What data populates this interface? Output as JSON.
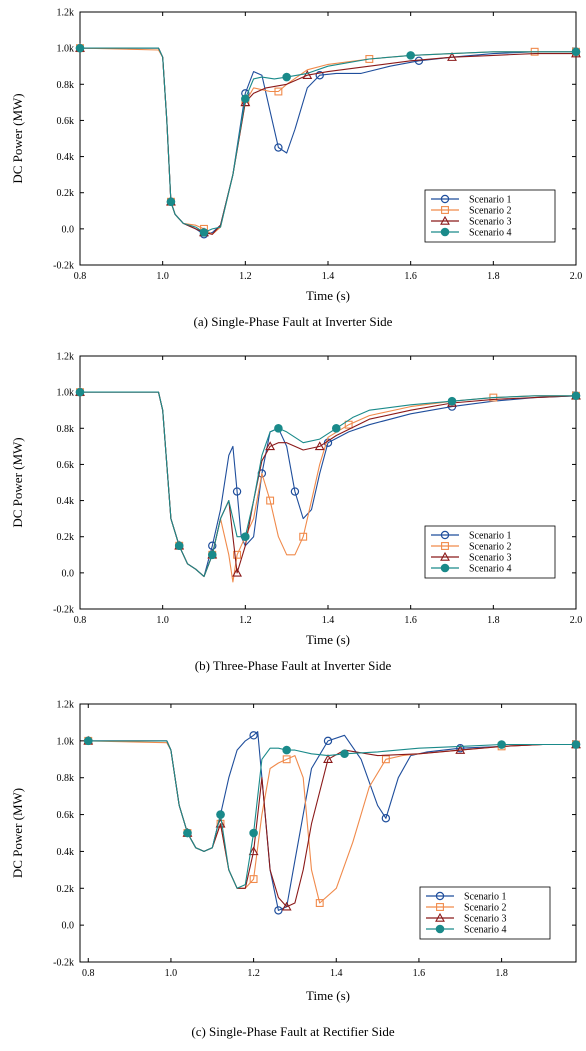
{
  "chart_data": [
    {
      "type": "line",
      "caption": "(a) Single-Phase Fault at Inverter Side",
      "xlabel": "Time (s)",
      "ylabel": "DC Power (MW)",
      "xlim": [
        0.8,
        2.0
      ],
      "ylim": [
        -0.2,
        1.2
      ],
      "x_ticks": [
        "0.8",
        "1.0",
        "1.2",
        "1.4",
        "1.6",
        "1.8",
        "2.0"
      ],
      "y_ticks": [
        "-0.2k",
        "0.0",
        "0.2k",
        "0.4k",
        "0.6k",
        "0.8k",
        "1.0k",
        "1.2k"
      ],
      "legend_position": "lower-right",
      "series": [
        {
          "name": "Scenario 1",
          "color": "#1f4e9c",
          "marker": "circle",
          "x": [
            0.8,
            0.99,
            1.0,
            1.01,
            1.02,
            1.03,
            1.05,
            1.08,
            1.1,
            1.12,
            1.14,
            1.17,
            1.2,
            1.22,
            1.24,
            1.26,
            1.28,
            1.3,
            1.32,
            1.35,
            1.38,
            1.42,
            1.48,
            1.55,
            1.62,
            1.7,
            1.8,
            1.9,
            2.0
          ],
          "y": [
            1.0,
            1.0,
            0.95,
            0.6,
            0.15,
            0.08,
            0.03,
            0.0,
            -0.03,
            -0.02,
            0.02,
            0.3,
            0.75,
            0.87,
            0.85,
            0.65,
            0.45,
            0.42,
            0.55,
            0.78,
            0.85,
            0.86,
            0.86,
            0.9,
            0.93,
            0.95,
            0.97,
            0.98,
            0.98
          ]
        },
        {
          "name": "Scenario 2",
          "color": "#f08a4b",
          "marker": "square",
          "x": [
            0.8,
            0.99,
            1.0,
            1.01,
            1.02,
            1.03,
            1.05,
            1.08,
            1.1,
            1.12,
            1.14,
            1.17,
            1.2,
            1.22,
            1.24,
            1.26,
            1.28,
            1.3,
            1.35,
            1.4,
            1.5,
            1.6,
            1.7,
            1.8,
            1.9,
            2.0
          ],
          "y": [
            1.0,
            0.99,
            0.95,
            0.6,
            0.15,
            0.08,
            0.03,
            0.02,
            0.0,
            -0.03,
            0.01,
            0.3,
            0.7,
            0.78,
            0.77,
            0.76,
            0.76,
            0.8,
            0.88,
            0.91,
            0.94,
            0.96,
            0.97,
            0.98,
            0.98,
            0.98
          ]
        },
        {
          "name": "Scenario 3",
          "color": "#8b1a1a",
          "marker": "triangle",
          "x": [
            0.8,
            0.99,
            1.0,
            1.01,
            1.02,
            1.03,
            1.05,
            1.08,
            1.1,
            1.12,
            1.14,
            1.17,
            1.2,
            1.22,
            1.25,
            1.3,
            1.35,
            1.4,
            1.5,
            1.6,
            1.7,
            1.8,
            1.9,
            2.0
          ],
          "y": [
            1.0,
            1.0,
            0.95,
            0.6,
            0.15,
            0.08,
            0.03,
            0.0,
            -0.02,
            -0.03,
            0.02,
            0.3,
            0.7,
            0.75,
            0.78,
            0.8,
            0.85,
            0.87,
            0.9,
            0.93,
            0.95,
            0.96,
            0.97,
            0.97
          ]
        },
        {
          "name": "Scenario 4",
          "color": "#1a8a8a",
          "marker": "dot",
          "x": [
            0.8,
            0.99,
            1.0,
            1.01,
            1.02,
            1.03,
            1.05,
            1.08,
            1.1,
            1.12,
            1.14,
            1.17,
            1.2,
            1.22,
            1.24,
            1.27,
            1.3,
            1.35,
            1.4,
            1.5,
            1.6,
            1.7,
            1.8,
            1.9,
            2.0
          ],
          "y": [
            1.0,
            1.0,
            0.95,
            0.6,
            0.15,
            0.08,
            0.03,
            0.01,
            -0.02,
            0.0,
            0.01,
            0.3,
            0.72,
            0.83,
            0.84,
            0.83,
            0.84,
            0.86,
            0.9,
            0.94,
            0.96,
            0.97,
            0.98,
            0.98,
            0.98
          ]
        }
      ]
    },
    {
      "type": "line",
      "caption": "(b) Three-Phase Fault at Inverter Side",
      "xlabel": "Time (s)",
      "ylabel": "DC Power (MW)",
      "xlim": [
        0.8,
        2.0
      ],
      "ylim": [
        -0.2,
        1.2
      ],
      "x_ticks": [
        "0.8",
        "1.0",
        "1.2",
        "1.4",
        "1.6",
        "1.8",
        "2.0"
      ],
      "y_ticks": [
        "-0.2k",
        "0.0",
        "0.2k",
        "0.4k",
        "0.6k",
        "0.8k",
        "1.0k",
        "1.2k"
      ],
      "legend_position": "lower-right",
      "series": [
        {
          "name": "Scenario 1",
          "color": "#1f4e9c",
          "marker": "circle",
          "x": [
            0.8,
            0.99,
            1.0,
            1.02,
            1.04,
            1.06,
            1.08,
            1.1,
            1.12,
            1.14,
            1.16,
            1.17,
            1.18,
            1.19,
            1.2,
            1.22,
            1.24,
            1.26,
            1.28,
            1.3,
            1.32,
            1.34,
            1.36,
            1.38,
            1.4,
            1.45,
            1.5,
            1.6,
            1.7,
            1.8,
            1.9,
            2.0
          ],
          "y": [
            1.0,
            1.0,
            0.9,
            0.3,
            0.15,
            0.05,
            0.02,
            -0.02,
            0.15,
            0.35,
            0.65,
            0.7,
            0.45,
            0.2,
            0.15,
            0.2,
            0.55,
            0.78,
            0.8,
            0.7,
            0.45,
            0.3,
            0.35,
            0.55,
            0.72,
            0.78,
            0.82,
            0.88,
            0.92,
            0.95,
            0.97,
            0.98
          ]
        },
        {
          "name": "Scenario 2",
          "color": "#f08a4b",
          "marker": "square",
          "x": [
            0.8,
            0.99,
            1.0,
            1.02,
            1.04,
            1.06,
            1.08,
            1.1,
            1.12,
            1.14,
            1.16,
            1.17,
            1.18,
            1.2,
            1.22,
            1.24,
            1.26,
            1.28,
            1.3,
            1.32,
            1.34,
            1.36,
            1.38,
            1.4,
            1.45,
            1.5,
            1.6,
            1.7,
            1.8,
            1.9,
            2.0
          ],
          "y": [
            1.0,
            1.0,
            0.9,
            0.3,
            0.15,
            0.05,
            0.02,
            -0.02,
            0.1,
            0.3,
            0.1,
            -0.05,
            0.1,
            0.2,
            0.3,
            0.55,
            0.4,
            0.2,
            0.1,
            0.1,
            0.2,
            0.4,
            0.6,
            0.75,
            0.82,
            0.87,
            0.92,
            0.95,
            0.97,
            0.98,
            0.98
          ]
        },
        {
          "name": "Scenario 3",
          "color": "#8b1a1a",
          "marker": "triangle",
          "x": [
            0.8,
            0.99,
            1.0,
            1.02,
            1.04,
            1.06,
            1.08,
            1.1,
            1.12,
            1.14,
            1.16,
            1.17,
            1.18,
            1.2,
            1.22,
            1.24,
            1.26,
            1.28,
            1.3,
            1.34,
            1.38,
            1.42,
            1.5,
            1.6,
            1.7,
            1.8,
            1.9,
            2.0
          ],
          "y": [
            1.0,
            1.0,
            0.9,
            0.3,
            0.15,
            0.05,
            0.02,
            -0.02,
            0.1,
            0.3,
            0.4,
            0.2,
            0.0,
            0.15,
            0.4,
            0.62,
            0.7,
            0.72,
            0.72,
            0.68,
            0.7,
            0.76,
            0.85,
            0.9,
            0.94,
            0.96,
            0.97,
            0.98
          ]
        },
        {
          "name": "Scenario 4",
          "color": "#1a8a8a",
          "marker": "dot",
          "x": [
            0.8,
            0.99,
            1.0,
            1.02,
            1.04,
            1.06,
            1.08,
            1.1,
            1.12,
            1.14,
            1.16,
            1.18,
            1.2,
            1.22,
            1.24,
            1.26,
            1.28,
            1.3,
            1.34,
            1.38,
            1.42,
            1.46,
            1.5,
            1.6,
            1.7,
            1.8,
            1.9,
            2.0
          ],
          "y": [
            1.0,
            1.0,
            0.9,
            0.3,
            0.15,
            0.05,
            0.02,
            -0.02,
            0.1,
            0.3,
            0.4,
            0.2,
            0.2,
            0.4,
            0.65,
            0.78,
            0.8,
            0.78,
            0.72,
            0.74,
            0.8,
            0.86,
            0.9,
            0.93,
            0.95,
            0.97,
            0.98,
            0.98
          ]
        }
      ]
    },
    {
      "type": "line",
      "caption": "(c)  Single-Phase Fault at Rectifier Side",
      "xlabel": "Time (s)",
      "ylabel": "DC Power (MW)",
      "xlim": [
        0.78,
        1.98
      ],
      "ylim": [
        -0.2,
        1.2
      ],
      "x_ticks": [
        "0.8",
        "1.0",
        "1.2",
        "1.4",
        "1.6",
        "1.8"
      ],
      "y_ticks": [
        "-0.2k",
        "0.0",
        "0.2k",
        "0.4k",
        "0.6k",
        "0.8k",
        "1.0k",
        "1.2k"
      ],
      "legend_position": "lower-right",
      "series": [
        {
          "name": "Scenario 1",
          "color": "#1f4e9c",
          "marker": "circle",
          "x": [
            0.8,
            0.99,
            1.0,
            1.02,
            1.04,
            1.06,
            1.08,
            1.1,
            1.12,
            1.14,
            1.16,
            1.18,
            1.2,
            1.21,
            1.22,
            1.24,
            1.26,
            1.28,
            1.3,
            1.34,
            1.38,
            1.42,
            1.46,
            1.5,
            1.52,
            1.55,
            1.58,
            1.62,
            1.7,
            1.8,
            1.9,
            1.98
          ],
          "y": [
            1.0,
            1.0,
            0.95,
            0.65,
            0.5,
            0.42,
            0.4,
            0.42,
            0.6,
            0.8,
            0.95,
            1.0,
            1.03,
            1.05,
            0.8,
            0.3,
            0.08,
            0.1,
            0.35,
            0.85,
            1.0,
            1.03,
            0.9,
            0.65,
            0.58,
            0.8,
            0.92,
            0.94,
            0.96,
            0.97,
            0.98,
            0.98
          ]
        },
        {
          "name": "Scenario 2",
          "color": "#f08a4b",
          "marker": "square",
          "x": [
            0.8,
            0.99,
            1.0,
            1.02,
            1.04,
            1.06,
            1.08,
            1.1,
            1.12,
            1.14,
            1.16,
            1.18,
            1.2,
            1.22,
            1.24,
            1.26,
            1.28,
            1.3,
            1.32,
            1.34,
            1.36,
            1.4,
            1.44,
            1.48,
            1.52,
            1.56,
            1.6,
            1.7,
            1.8,
            1.9,
            1.98
          ],
          "y": [
            1.0,
            0.99,
            0.95,
            0.65,
            0.5,
            0.42,
            0.4,
            0.42,
            0.55,
            0.3,
            0.2,
            0.2,
            0.25,
            0.6,
            0.85,
            0.88,
            0.9,
            0.92,
            0.8,
            0.3,
            0.12,
            0.2,
            0.45,
            0.75,
            0.9,
            0.92,
            0.93,
            0.95,
            0.97,
            0.98,
            0.98
          ]
        },
        {
          "name": "Scenario 3",
          "color": "#8b1a1a",
          "marker": "triangle",
          "x": [
            0.8,
            0.99,
            1.0,
            1.02,
            1.04,
            1.06,
            1.08,
            1.1,
            1.12,
            1.14,
            1.16,
            1.18,
            1.2,
            1.22,
            1.24,
            1.26,
            1.28,
            1.3,
            1.32,
            1.34,
            1.38,
            1.42,
            1.5,
            1.6,
            1.7,
            1.8,
            1.9,
            1.98
          ],
          "y": [
            1.0,
            1.0,
            0.95,
            0.65,
            0.5,
            0.42,
            0.4,
            0.42,
            0.55,
            0.3,
            0.2,
            0.2,
            0.4,
            0.8,
            0.3,
            0.15,
            0.1,
            0.12,
            0.3,
            0.55,
            0.9,
            0.95,
            0.92,
            0.93,
            0.95,
            0.97,
            0.98,
            0.98
          ]
        },
        {
          "name": "Scenario 4",
          "color": "#1a8a8a",
          "marker": "dot",
          "x": [
            0.8,
            0.99,
            1.0,
            1.02,
            1.04,
            1.06,
            1.08,
            1.1,
            1.12,
            1.14,
            1.16,
            1.18,
            1.2,
            1.22,
            1.24,
            1.26,
            1.28,
            1.3,
            1.34,
            1.38,
            1.42,
            1.5,
            1.6,
            1.7,
            1.8,
            1.9,
            1.98
          ],
          "y": [
            1.0,
            1.0,
            0.95,
            0.65,
            0.5,
            0.42,
            0.4,
            0.42,
            0.6,
            0.3,
            0.2,
            0.22,
            0.5,
            0.9,
            0.96,
            0.96,
            0.95,
            0.95,
            0.93,
            0.92,
            0.93,
            0.94,
            0.96,
            0.97,
            0.98,
            0.98,
            0.98
          ]
        }
      ]
    }
  ]
}
